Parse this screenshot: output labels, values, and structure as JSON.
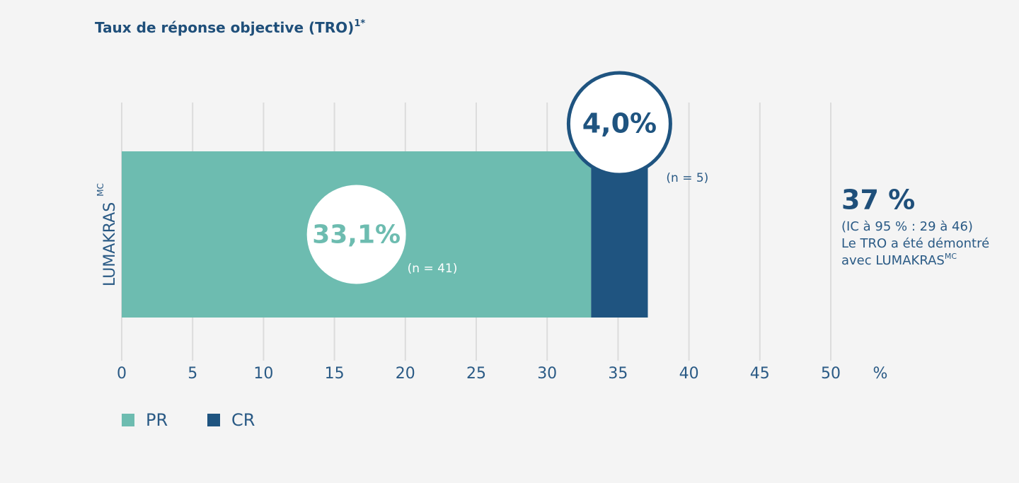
{
  "chart_data": {
    "type": "stacked-barh",
    "title": "Taux de réponse objective (TRO)",
    "title_superscript": "1*",
    "categories": [
      "LUMAKRAS"
    ],
    "category_superscript": "MC",
    "series": [
      {
        "name": "PR",
        "color": "#6dbcb0",
        "values": [
          33.1
        ],
        "value_labels": [
          "33,1%"
        ],
        "count_labels": [
          "(n = 41)"
        ]
      },
      {
        "name": "CR",
        "color": "#1f5480",
        "values": [
          4.0
        ],
        "value_labels": [
          "4,0%"
        ],
        "count_labels": [
          "(n = 5)"
        ]
      }
    ],
    "xlim": [
      0,
      50
    ],
    "xticks": [
      0,
      5,
      10,
      15,
      20,
      25,
      30,
      35,
      40,
      45,
      50
    ],
    "x_label": "%",
    "grid": true,
    "legend": "bottom-left",
    "summary": {
      "headline": "37 %",
      "lines": [
        "(IC à 95 % : 29 à 46)",
        "Le TRO a été démontré",
        "avec LUMAKRAS"
      ],
      "superscript": "MC"
    }
  }
}
